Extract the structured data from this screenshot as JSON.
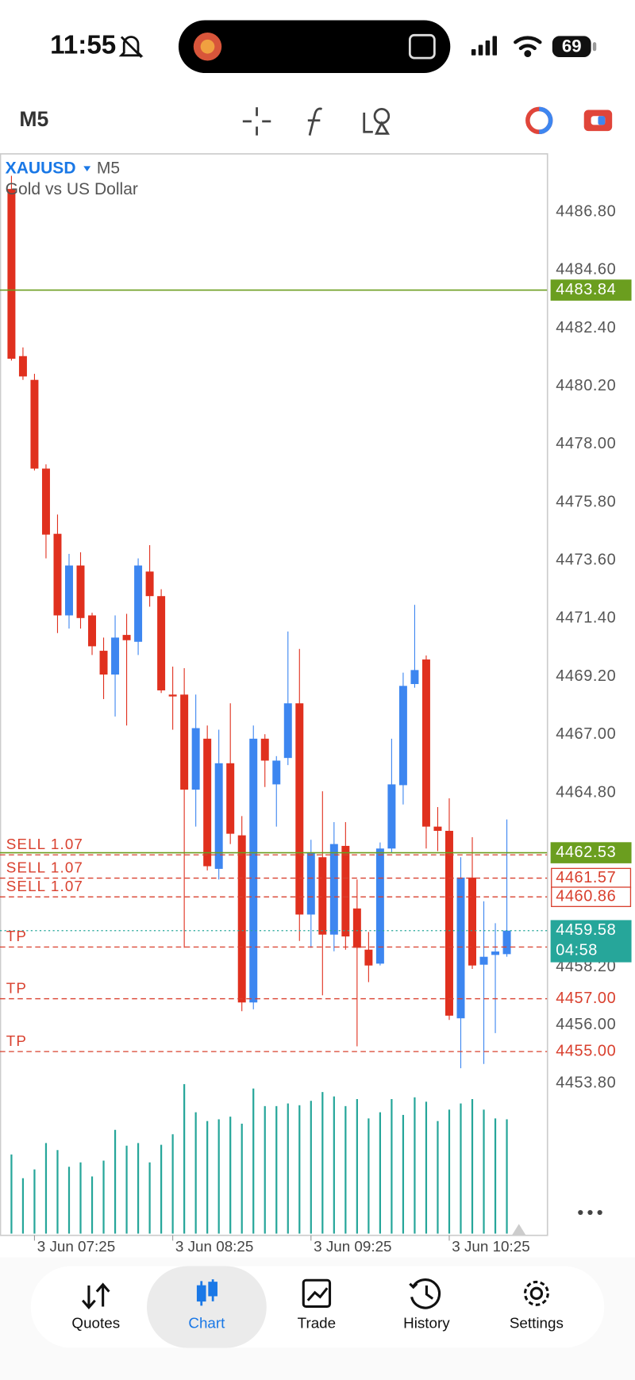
{
  "status_bar": {
    "time": "11:55",
    "battery": "69"
  },
  "toolbar": {
    "timeframe": "M5"
  },
  "chart_data": {
    "type": "candlestick",
    "symbol": "XAUUSD",
    "timeframe": "M5",
    "subtitle": "Gold vs US Dollar",
    "categories": [
      null,
      null,
      "3 Jun 07:25",
      null,
      null,
      null,
      null,
      null,
      null,
      null,
      null,
      null,
      null,
      null,
      "3 Jun 08:25",
      null,
      null,
      null,
      null,
      null,
      null,
      null,
      null,
      null,
      null,
      null,
      "3 Jun 09:25",
      null,
      null,
      null,
      null,
      null,
      null,
      null,
      null,
      null,
      null,
      null,
      "3 Jun 10:25",
      null,
      null,
      null,
      null,
      null
    ],
    "open": [
      4487.67,
      4481.34,
      4480.44,
      4477.08,
      4474.61,
      4471.52,
      4473.41,
      4471.52,
      4470.18,
      4469.28,
      4470.78,
      4470.52,
      4473.18,
      4472.25,
      4468.52,
      4468.52,
      4464.92,
      4466.85,
      4461.92,
      4465.92,
      4463.19,
      4456.86,
      4466.85,
      4465.12,
      4466.12,
      4468.19,
      4460.19,
      4462.36,
      4459.43,
      4462.79,
      4460.42,
      4458.86,
      4458.33,
      4462.69,
      4465.09,
      4468.92,
      4469.85,
      4463.52,
      4463.36,
      4456.26,
      4461.59,
      4458.29,
      4458.66,
      4458.69
    ],
    "high": [
      4488.17,
      4481.67,
      4480.67,
      4477.24,
      4475.34,
      4473.85,
      4473.91,
      4471.62,
      4470.68,
      4471.52,
      4471.58,
      4473.68,
      4474.18,
      4472.51,
      4469.58,
      4469.52,
      4468.52,
      4467.35,
      4467.19,
      4468.19,
      4463.92,
      4467.35,
      4467.02,
      4466.19,
      4470.91,
      4470.25,
      4463.02,
      4464.86,
      4463.69,
      4463.69,
      4461.52,
      4459.53,
      4462.92,
      4466.85,
      4469.35,
      4471.92,
      4470.0,
      4464.26,
      4464.59,
      4462.36,
      4463.12,
      4460.69,
      4459.86,
      4463.79
    ],
    "low": [
      4481.17,
      4480.44,
      4477.01,
      4473.68,
      4470.85,
      4471.02,
      4471.02,
      4470.02,
      4468.35,
      4467.69,
      4467.35,
      4470.02,
      4471.85,
      4468.58,
      4467.19,
      4458.93,
      4463.52,
      4461.86,
      4461.52,
      4462.86,
      4456.53,
      4456.6,
      4465.02,
      4463.52,
      4465.85,
      4459.19,
      4458.93,
      4457.13,
      4458.8,
      4458.86,
      4455.2,
      4457.63,
      4458.26,
      4462.52,
      4464.36,
      4468.78,
      4462.69,
      4462.59,
      4456.2,
      4454.37,
      4458.13,
      4454.53,
      4455.7,
      4458.59
    ],
    "close": [
      4481.24,
      4480.57,
      4477.08,
      4474.58,
      4471.52,
      4473.41,
      4471.42,
      4470.35,
      4469.28,
      4470.68,
      4470.58,
      4473.41,
      4472.25,
      4468.68,
      4468.45,
      4464.92,
      4467.25,
      4462.02,
      4465.92,
      4463.25,
      4456.86,
      4466.85,
      4466.02,
      4466.02,
      4468.19,
      4460.19,
      4462.52,
      4459.43,
      4462.86,
      4459.36,
      4458.93,
      4458.26,
      4462.69,
      4465.12,
      4468.85,
      4469.45,
      4463.52,
      4463.36,
      4456.36,
      4461.59,
      4458.26,
      4458.59,
      4458.79,
      4459.58
    ],
    "volume": [
      90,
      63,
      73,
      103,
      95,
      76,
      81,
      65,
      83,
      118,
      100,
      103,
      81,
      101,
      113,
      170,
      138,
      128,
      130,
      133,
      125,
      165,
      145,
      145,
      148,
      146,
      151,
      161,
      156,
      145,
      153,
      131,
      138,
      153,
      135,
      155,
      150,
      128,
      141,
      148,
      153,
      141,
      131,
      130
    ],
    "up_color": "#3d86f0",
    "down_color": "#e0301e",
    "volume_color": "#26a69a",
    "ylim": [
      4453.8,
      4489.0
    ],
    "yticks": [
      {
        "value": 4486.8,
        "label": "4486.80"
      },
      {
        "value": 4484.6,
        "label": "4484.60"
      },
      {
        "value": 4482.4,
        "label": "4482.40"
      },
      {
        "value": 4480.2,
        "label": "4480.20"
      },
      {
        "value": 4478.0,
        "label": "4478.00"
      },
      {
        "value": 4475.8,
        "label": "4475.80"
      },
      {
        "value": 4473.6,
        "label": "4473.60"
      },
      {
        "value": 4471.4,
        "label": "4471.40"
      },
      {
        "value": 4469.2,
        "label": "4469.20"
      },
      {
        "value": 4467.0,
        "label": "4467.00"
      },
      {
        "value": 4464.8,
        "label": "4464.80"
      },
      {
        "value": 4458.2,
        "label": "4458.20"
      },
      {
        "value": 4456.0,
        "label": "4456.00"
      },
      {
        "value": 4453.8,
        "label": "4453.80"
      }
    ],
    "levels": [
      {
        "price": 4483.84,
        "color": "#6b9e1f",
        "style": "solid",
        "box": "fill"
      },
      {
        "price": 4462.53,
        "color": "#6b9e1f",
        "style": "solid",
        "box": "fill"
      },
      {
        "tag": "SELL 1.07",
        "price": 4462.45,
        "color": "#d9402e",
        "style": "dashed",
        "box": "none"
      },
      {
        "tag": "SELL 1.07",
        "price": 4461.57,
        "color": "#d9402e",
        "style": "dashed",
        "box": "outline"
      },
      {
        "tag": "SELL 1.07",
        "price": 4460.86,
        "color": "#d9402e",
        "style": "dashed",
        "box": "outline"
      },
      {
        "price": 4459.58,
        "color": "#26a69a",
        "style": "dotted",
        "box": "fill",
        "countdown": "04:58"
      },
      {
        "tag": "TP",
        "price": 4458.96,
        "color": "#d9402e",
        "style": "dashed",
        "box": "none"
      },
      {
        "tag": "TP",
        "price": {
          "value": 4457.0,
          "label": "4457.00"
        },
        "color": "#d9402e",
        "style": "dashed",
        "box": "text"
      },
      {
        "tag": "TP",
        "price": {
          "value": 4455.0,
          "label": "4455.00"
        },
        "color": "#d9402e",
        "style": "dashed",
        "box": "text"
      }
    ]
  },
  "nav": {
    "items": [
      "Quotes",
      "Chart",
      "Trade",
      "History",
      "Settings"
    ]
  }
}
